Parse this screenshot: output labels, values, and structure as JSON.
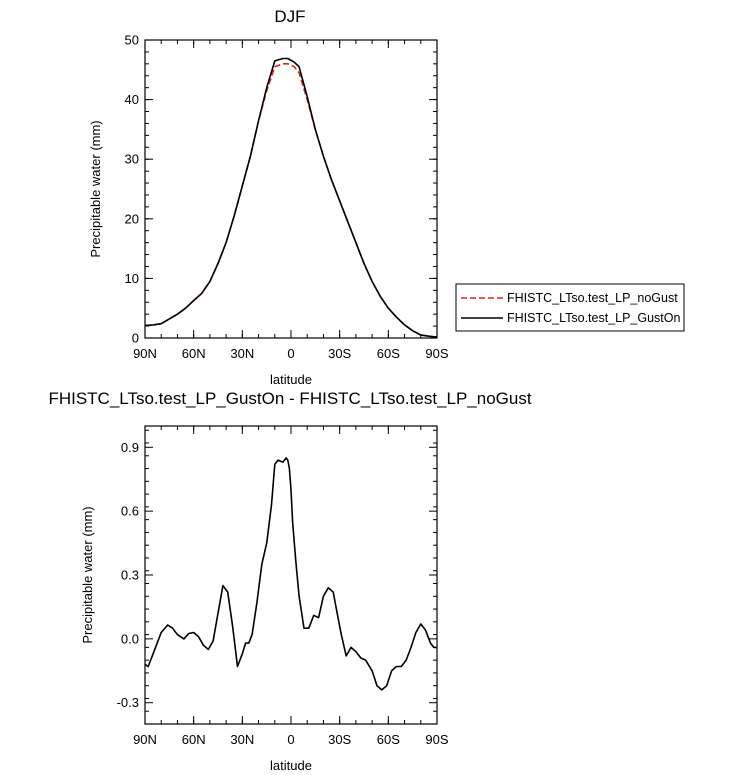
{
  "chart_data": [
    {
      "type": "line",
      "title": "DJF",
      "xlabel": "latitude",
      "ylabel": "Precipitable water (mm)",
      "xlim": [
        90,
        -90
      ],
      "ylim": [
        0,
        50
      ],
      "x_ticks": [
        {
          "value": 90,
          "label": "90N"
        },
        {
          "value": 60,
          "label": "60N"
        },
        {
          "value": 30,
          "label": "30N"
        },
        {
          "value": 0,
          "label": "0"
        },
        {
          "value": -30,
          "label": "30S"
        },
        {
          "value": -60,
          "label": "60S"
        },
        {
          "value": -90,
          "label": "90S"
        }
      ],
      "y_ticks": [
        0,
        10,
        20,
        30,
        40,
        50
      ],
      "legend_position": "outside-right",
      "series": [
        {
          "name": "FHISTC_LTso.test_LP_noGust",
          "color": "#e0201b",
          "dash": "dashed",
          "x": [
            90,
            85,
            80,
            75,
            70,
            65,
            60,
            55,
            50,
            45,
            40,
            35,
            30,
            25,
            20,
            15,
            10,
            5,
            2,
            0,
            -2,
            -5,
            -10,
            -15,
            -20,
            -25,
            -30,
            -35,
            -40,
            -45,
            -50,
            -55,
            -60,
            -65,
            -70,
            -75,
            -80,
            -85,
            -88,
            -90
          ],
          "y": [
            2.1,
            2.2,
            2.4,
            3.2,
            4.0,
            5.0,
            6.3,
            7.5,
            9.5,
            12.5,
            16.0,
            20.5,
            25.5,
            30.5,
            36.5,
            41.5,
            45.5,
            46.0,
            46.0,
            45.8,
            45.5,
            44.5,
            40.0,
            35.0,
            30.5,
            26.5,
            23.0,
            19.5,
            16.0,
            12.5,
            9.5,
            7.0,
            5.0,
            3.5,
            2.2,
            1.2,
            0.5,
            0.3,
            0.2,
            0.2
          ]
        },
        {
          "name": "FHISTC_LTso.test_LP_GustOn",
          "color": "#000000",
          "dash": "solid",
          "x": [
            90,
            85,
            80,
            75,
            70,
            65,
            60,
            55,
            50,
            45,
            40,
            35,
            30,
            25,
            20,
            15,
            10,
            5,
            2,
            0,
            -2,
            -5,
            -10,
            -15,
            -20,
            -25,
            -30,
            -35,
            -40,
            -45,
            -50,
            -55,
            -60,
            -65,
            -70,
            -75,
            -80,
            -85,
            -88,
            -90
          ],
          "y": [
            2.1,
            2.2,
            2.4,
            3.2,
            4.0,
            5.0,
            6.3,
            7.5,
            9.5,
            12.5,
            16.0,
            20.5,
            25.5,
            30.5,
            36.5,
            42.0,
            46.5,
            46.9,
            46.9,
            46.6,
            46.3,
            45.5,
            40.5,
            35.0,
            30.5,
            26.5,
            23.0,
            19.5,
            16.0,
            12.5,
            9.5,
            7.0,
            5.0,
            3.5,
            2.2,
            1.2,
            0.5,
            0.3,
            0.2,
            0.2
          ]
        }
      ]
    },
    {
      "type": "line",
      "title": "FHISTC_LTso.test_LP_GustOn - FHISTC_LTso.test_LP_noGust",
      "xlabel": "latitude",
      "ylabel": "Precipitable water (mm)",
      "xlim": [
        90,
        -90
      ],
      "ylim": [
        -0.4,
        1.0
      ],
      "x_ticks": [
        {
          "value": 90,
          "label": "90N"
        },
        {
          "value": 60,
          "label": "60N"
        },
        {
          "value": 30,
          "label": "30N"
        },
        {
          "value": 0,
          "label": "0"
        },
        {
          "value": -30,
          "label": "30S"
        },
        {
          "value": -60,
          "label": "60S"
        },
        {
          "value": -90,
          "label": "90S"
        }
      ],
      "y_ticks": [
        {
          "value": -0.3,
          "label": "-0.3"
        },
        {
          "value": 0.0,
          "label": "0.0"
        },
        {
          "value": 0.3,
          "label": "0.3"
        },
        {
          "value": 0.6,
          "label": "0.6"
        },
        {
          "value": 0.9,
          "label": "0.9"
        }
      ],
      "series": [
        {
          "color": "#000000",
          "x": [
            90,
            88,
            85,
            80,
            76,
            73,
            70,
            66,
            63,
            60,
            57,
            54,
            51,
            48,
            45,
            42,
            39,
            36,
            33,
            30,
            28,
            26,
            24,
            21,
            18,
            15,
            12,
            10,
            8,
            5,
            3,
            2,
            1,
            0,
            -1,
            -3,
            -5,
            -8,
            -11,
            -14,
            -17,
            -20,
            -23,
            -26,
            -29,
            -31,
            -34,
            -37,
            -40,
            -43,
            -46,
            -50,
            -53,
            -56,
            -59,
            -62,
            -65,
            -68,
            -71,
            -74,
            -77,
            -80,
            -83,
            -86,
            -88,
            -90
          ],
          "y": [
            -0.12,
            -0.13,
            -0.07,
            0.03,
            0.065,
            0.05,
            0.02,
            0.0,
            0.025,
            0.03,
            0.01,
            -0.03,
            -0.05,
            -0.01,
            0.12,
            0.25,
            0.22,
            0.06,
            -0.13,
            -0.07,
            -0.02,
            -0.02,
            0.02,
            0.17,
            0.35,
            0.45,
            0.63,
            0.82,
            0.84,
            0.83,
            0.85,
            0.84,
            0.8,
            0.7,
            0.55,
            0.36,
            0.2,
            0.05,
            0.05,
            0.11,
            0.1,
            0.2,
            0.24,
            0.22,
            0.1,
            0.02,
            -0.08,
            -0.04,
            -0.06,
            -0.09,
            -0.1,
            -0.15,
            -0.22,
            -0.24,
            -0.22,
            -0.15,
            -0.13,
            -0.13,
            -0.1,
            -0.04,
            0.03,
            0.07,
            0.04,
            -0.02,
            -0.04,
            -0.04
          ]
        }
      ]
    }
  ]
}
